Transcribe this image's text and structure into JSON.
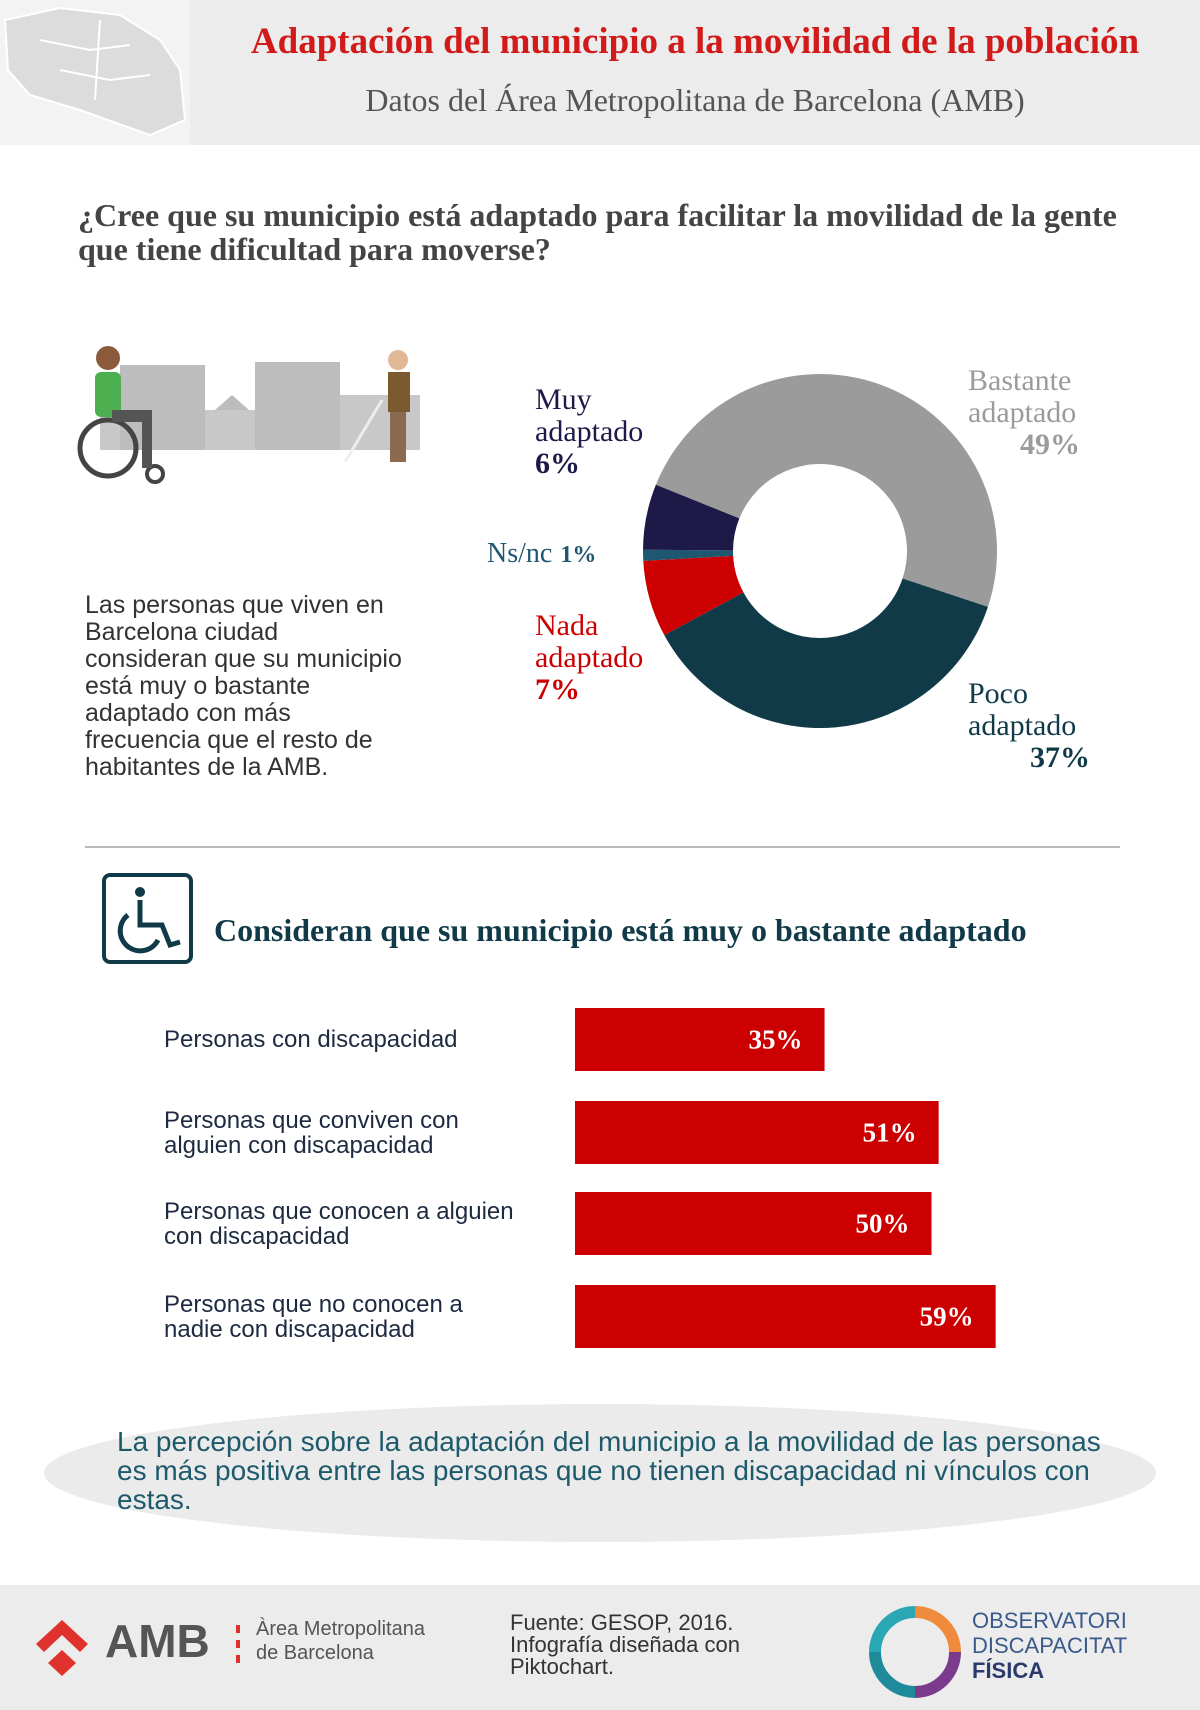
{
  "header": {
    "title": "Adaptación del municipio a la movilidad de la población",
    "subtitle": "Datos del Área Metropolitana de Barcelona (AMB)"
  },
  "question": "¿Cree que su municipio está adaptado para facilitar la movilidad de la gente que tiene dificultad para moverse?",
  "note": "Las personas que viven en Barcelona ciudad consideran que su municipio está muy o bastante adaptado con más frecuencia que el resto de habitantes de la AMB.",
  "chart_data": [
    {
      "type": "donut",
      "categories": [
        "Bastante adaptado",
        "Poco adaptado",
        "Nada adaptado",
        "Ns/nc",
        "Muy adaptado"
      ],
      "values": [
        49,
        37,
        7,
        1,
        6
      ],
      "value_labels": [
        "49%",
        "37%",
        "7%",
        "1%",
        "6%"
      ],
      "colors": [
        "#9b9b9b",
        "#113a48",
        "#cc0000",
        "#1f5670",
        "#1d1a47"
      ]
    },
    {
      "type": "bar",
      "title": "Consideran que su municipio está muy o bastante adaptado",
      "categories": [
        "Personas con discapacidad",
        "Personas que conviven con alguien con discapacidad",
        "Personas que conocen a alguien con discapacidad",
        "Personas que no conocen a nadie con discapacidad"
      ],
      "values": [
        35,
        51,
        50,
        59
      ],
      "value_labels": [
        "35%",
        "51%",
        "50%",
        "59%"
      ],
      "color": "#cc0000"
    }
  ],
  "conclusion": "La percepción sobre la adaptación del municipio a la movilidad de las personas es más positiva entre las personas que no tienen discapacidad ni vínculos con estas.",
  "footer": {
    "amb_logo": "AMB",
    "amb_name": [
      "Àrea Metropolitana",
      "de Barcelona"
    ],
    "source": [
      "Fuente: GESOP, 2016.",
      "Infografía diseñada con",
      "Piktochart."
    ],
    "observatori": [
      "OBSERVATORI",
      "DISCAPACITAT",
      "FÍSICA"
    ]
  }
}
